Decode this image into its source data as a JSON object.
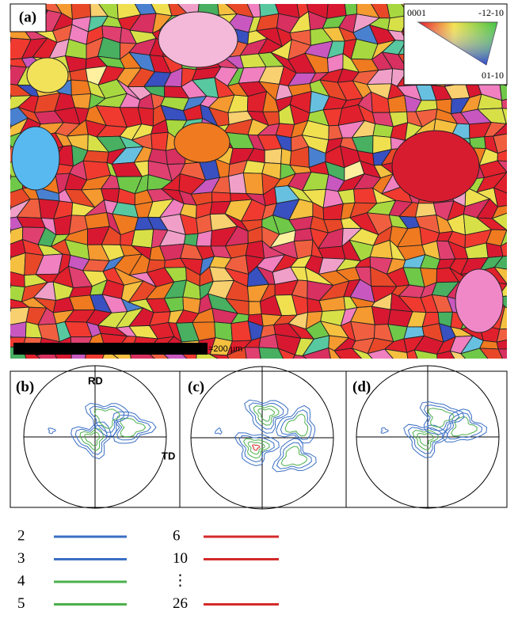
{
  "panels": [
    {
      "label": "(a)"
    },
    {
      "label": "(b)",
      "axis_top": "RD",
      "axis_right": "TD"
    },
    {
      "label": "(c)"
    },
    {
      "label": "(d)"
    }
  ],
  "ipf_key": {
    "top_left": "0001",
    "top_right": "-12-10",
    "bottom_right": "01-10"
  },
  "scale_bar": "=200 µm",
  "contour_legend": [
    {
      "label": "2",
      "color": "#3a6fc4"
    },
    {
      "label": "3",
      "color": "#3a6fc4"
    },
    {
      "label": "4",
      "color": "#4cb04c"
    },
    {
      "label": "5",
      "color": "#4cb04c"
    },
    {
      "label": "6",
      "color": "#d42a2a"
    },
    {
      "label": "10",
      "color": "#d42a2a"
    },
    {
      "label": "⋮",
      "color": null
    },
    {
      "label": "26",
      "color": "#d42a2a"
    }
  ]
}
